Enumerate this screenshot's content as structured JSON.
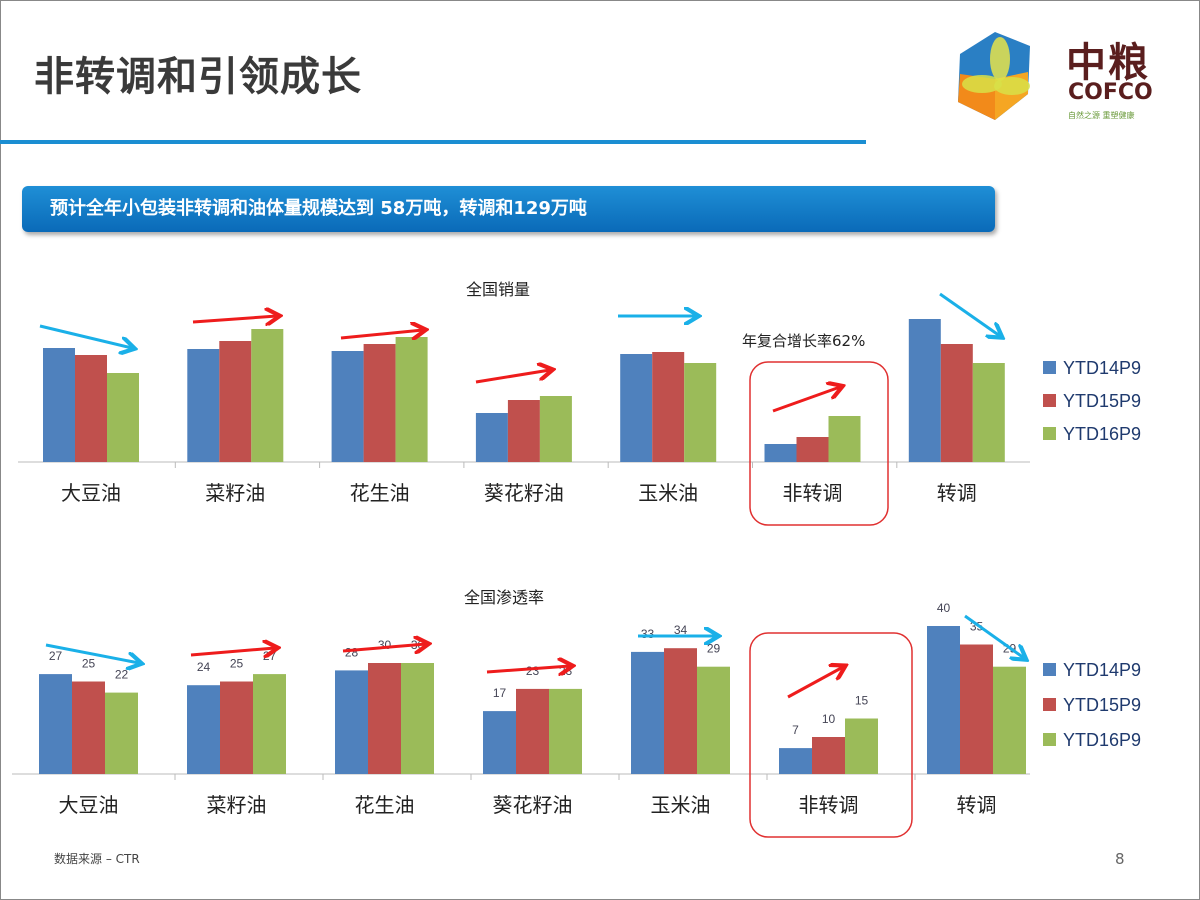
{
  "slide": {
    "title": "非转调和引领成长",
    "banner": "预计全年小包装非转调和油体量规模达到 58万吨，转调和129万吨",
    "source": "数据来源 – CTR",
    "page_number": "8",
    "logo": {
      "cn": "中粮",
      "en": "COFCO",
      "slogan": "自然之源 重塑健康"
    }
  },
  "colors": {
    "YTD14P9": "#4f81bd",
    "YTD15P9": "#c0504d",
    "YTD16P9": "#9bbb59",
    "accent": "#1b8ed2",
    "highlight": "#e03030"
  },
  "chart_data": [
    {
      "type": "bar",
      "title": "全国销量",
      "categories": [
        "大豆油",
        "菜籽油",
        "花生油",
        "葵花籽油",
        "玉米油",
        "非转调",
        "转调"
      ],
      "series": [
        {
          "name": "YTD14P9",
          "values": [
            114,
            113,
            111,
            49,
            108,
            18,
            143
          ]
        },
        {
          "name": "YTD15P9",
          "values": [
            107,
            121,
            118,
            62,
            110,
            25,
            118
          ]
        },
        {
          "name": "YTD16P9",
          "values": [
            89,
            133,
            125,
            66,
            99,
            46,
            99
          ]
        }
      ],
      "annotation": "年复合增长率62%",
      "highlight_category": "非转调",
      "trend_arrows": [
        "down",
        "up",
        "up",
        "up",
        "flat",
        "up",
        "down"
      ],
      "show_values": false,
      "legend": "right",
      "grid": false
    },
    {
      "type": "bar",
      "title": "全国渗透率",
      "categories": [
        "大豆油",
        "菜籽油",
        "花生油",
        "葵花籽油",
        "玉米油",
        "非转调",
        "转调"
      ],
      "series": [
        {
          "name": "YTD14P9",
          "values": [
            27,
            24,
            28,
            17,
            33,
            7,
            40
          ]
        },
        {
          "name": "YTD15P9",
          "values": [
            25,
            25,
            30,
            23,
            34,
            10,
            35
          ]
        },
        {
          "name": "YTD16P9",
          "values": [
            22,
            27,
            30,
            23,
            29,
            15,
            29
          ]
        }
      ],
      "highlight_category": "非转调",
      "trend_arrows": [
        "down",
        "up",
        "up",
        "up",
        "flat",
        "up",
        "down"
      ],
      "show_values": true,
      "legend": "right",
      "grid": false
    }
  ]
}
